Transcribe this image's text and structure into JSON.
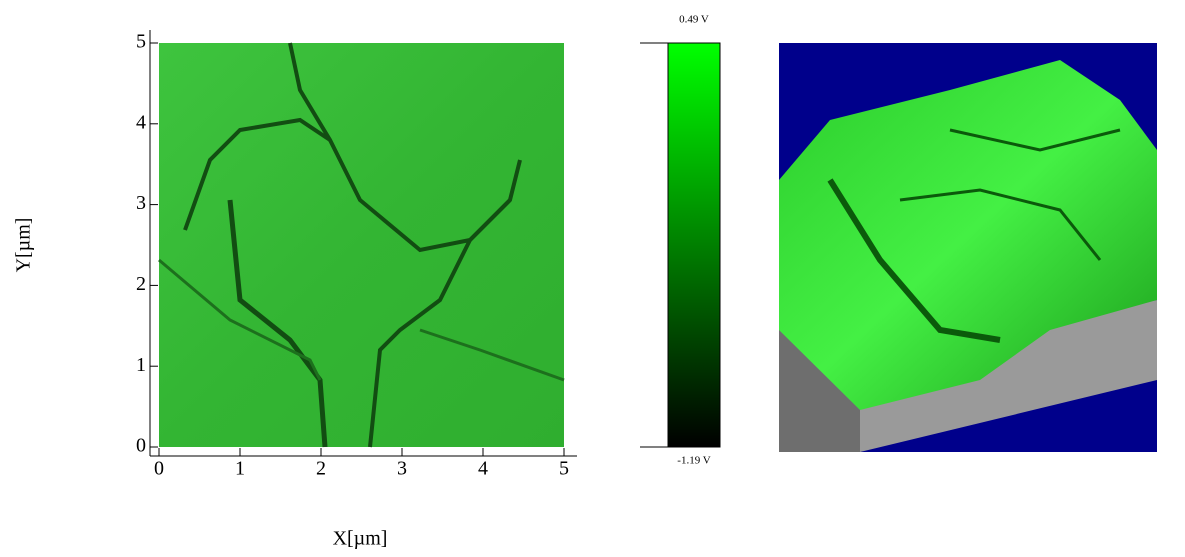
{
  "chart_data": {
    "type": "image",
    "xlabel": "X[µm]",
    "ylabel": "Y[µm]",
    "xlim": [
      0,
      5
    ],
    "ylim": [
      0,
      5
    ],
    "xticks": [
      0,
      1,
      2,
      3,
      4,
      5
    ],
    "yticks": [
      0,
      1,
      2,
      3,
      4,
      5
    ],
    "colorbar": {
      "clim": [
        -1.19,
        0.49
      ],
      "ticks": [
        {
          "value": -1.19,
          "label": "-1.19 V"
        },
        {
          "value": 0.49,
          "label": "0.49 V"
        }
      ],
      "colors": [
        "#000000",
        "#00ff00"
      ]
    }
  }
}
